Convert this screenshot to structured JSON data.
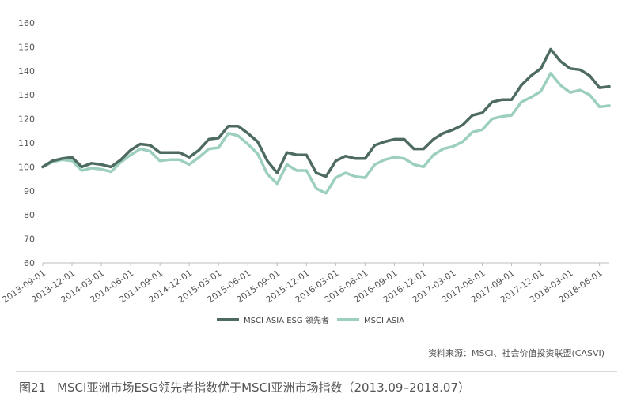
{
  "chart_data": {
    "type": "line",
    "ylim": [
      60,
      160
    ],
    "yticks": [
      60,
      70,
      80,
      90,
      100,
      110,
      120,
      130,
      140,
      150,
      160
    ],
    "x_tick_labels": [
      "2013-09-01",
      "2013-12-01",
      "2014-03-01",
      "2014-06-01",
      "2014-09-01",
      "2014-12-01",
      "2015-03-01",
      "2015-06-01",
      "2015-09-01",
      "2015-12-01",
      "2016-03-01",
      "2016-06-01",
      "2016-09-01",
      "2016-12-01",
      "2017-03-01",
      "2017-06-01",
      "2017-09-01",
      "2017-12-01",
      "2018-03-01",
      "2018-06-01"
    ],
    "x_months": [
      "2013-09",
      "2013-10",
      "2013-11",
      "2013-12",
      "2014-01",
      "2014-02",
      "2014-03",
      "2014-04",
      "2014-05",
      "2014-06",
      "2014-07",
      "2014-08",
      "2014-09",
      "2014-10",
      "2014-11",
      "2014-12",
      "2015-01",
      "2015-02",
      "2015-03",
      "2015-04",
      "2015-05",
      "2015-06",
      "2015-07",
      "2015-08",
      "2015-09",
      "2015-10",
      "2015-11",
      "2015-12",
      "2016-01",
      "2016-02",
      "2016-03",
      "2016-04",
      "2016-05",
      "2016-06",
      "2016-07",
      "2016-08",
      "2016-09",
      "2016-10",
      "2016-11",
      "2016-12",
      "2017-01",
      "2017-02",
      "2017-03",
      "2017-04",
      "2017-05",
      "2017-06",
      "2017-07",
      "2017-08",
      "2017-09",
      "2017-10",
      "2017-11",
      "2017-12",
      "2018-01",
      "2018-02",
      "2018-03",
      "2018-04",
      "2018-05",
      "2018-06",
      "2018-07"
    ],
    "series": [
      {
        "name": "MSCI ASIA ESG 领先者",
        "color": "#4e6b60",
        "values": [
          100,
          102.5,
          103.5,
          104,
          100,
          101.5,
          101,
          100,
          103,
          107,
          109.5,
          109,
          106,
          106,
          106,
          104,
          107,
          111.5,
          112,
          117,
          117,
          114,
          110.5,
          102.5,
          97.5,
          106,
          105,
          105,
          97.5,
          96,
          102.5,
          104.5,
          103.5,
          103.5,
          109,
          110.5,
          111.5,
          111.5,
          107.5,
          107.5,
          111.5,
          114,
          115.5,
          117.5,
          121.5,
          122.5,
          127,
          128,
          128,
          134,
          138,
          141,
          149,
          144,
          141,
          140.5,
          138,
          133,
          133.5
        ]
      },
      {
        "name": "MSCI ASIA",
        "color": "#9ccfbf",
        "values": [
          100,
          102,
          103,
          102.5,
          98.5,
          99.5,
          99,
          98,
          102,
          105,
          107.5,
          106.5,
          102.5,
          103,
          103,
          101,
          104,
          107.5,
          108,
          114,
          113,
          109.5,
          105.5,
          97,
          93,
          101,
          98.5,
          98.5,
          91,
          89,
          95.5,
          97.5,
          96,
          95.5,
          101,
          103,
          104,
          103.5,
          101,
          100,
          105,
          107.5,
          108.5,
          110.5,
          114.5,
          115.5,
          120,
          121,
          121.5,
          127,
          129,
          131.5,
          139,
          134,
          131,
          132,
          130,
          125,
          125.5
        ]
      }
    ],
    "legend_position": "bottom-center",
    "grid": false
  },
  "source_text": "资料来源：MSCI、社会价值投资联盟(CASVI)",
  "caption": {
    "number": "图21",
    "title": "MSCI亚洲市场ESG领先者指数优于MSCI亚洲市场指数（2013.09–2018.07）"
  }
}
